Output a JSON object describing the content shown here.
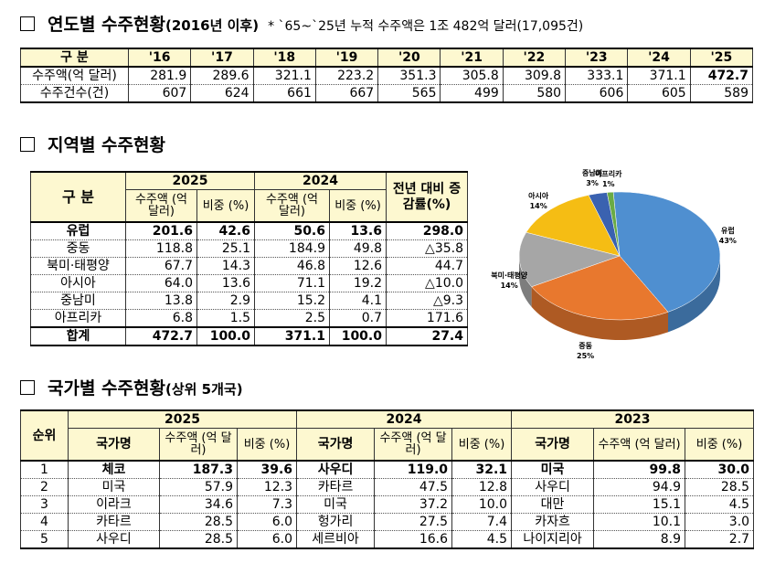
{
  "section1": {
    "title": "연도별 수주현황",
    "subtitle": "(2016년 이후)",
    "note": "* `65~`25년 누적 수주액은 1조 482억 달러(17,095건)",
    "header_label": "구  분",
    "years": [
      "'16",
      "'17",
      "'18",
      "'19",
      "'20",
      "'21",
      "'22",
      "'23",
      "'24",
      "'25"
    ],
    "rows": [
      {
        "label": "수주액(억 달러)",
        "values": [
          "281.9",
          "289.6",
          "321.1",
          "223.2",
          "351.3",
          "305.8",
          "309.8",
          "333.1",
          "371.1",
          "472.7"
        ]
      },
      {
        "label": "수주건수(건)",
        "values": [
          "607",
          "624",
          "661",
          "667",
          "565",
          "499",
          "580",
          "606",
          "605",
          "589"
        ]
      }
    ]
  },
  "section2": {
    "title": "지역별 수주현황",
    "header_label": "구  분",
    "year_a": "2025",
    "year_b": "2024",
    "change_header": "전년 대비 증감률(%)",
    "amount_header": "수주액 (억 달러)",
    "share_header": "비중 (%)",
    "rows": [
      {
        "region": "유럽",
        "a_amt": "201.6",
        "a_share": "42.6",
        "b_amt": "50.6",
        "b_share": "13.6",
        "change": "298.0",
        "bold": true
      },
      {
        "region": "중동",
        "a_amt": "118.8",
        "a_share": "25.1",
        "b_amt": "184.9",
        "b_share": "49.8",
        "change": "△35.8"
      },
      {
        "region": "북미·태평양",
        "a_amt": "67.7",
        "a_share": "14.3",
        "b_amt": "46.8",
        "b_share": "12.6",
        "change": "44.7"
      },
      {
        "region": "아시아",
        "a_amt": "64.0",
        "a_share": "13.6",
        "b_amt": "71.1",
        "b_share": "19.2",
        "change": "△10.0"
      },
      {
        "region": "중남미",
        "a_amt": "13.8",
        "a_share": "2.9",
        "b_amt": "15.2",
        "b_share": "4.1",
        "change": "△9.3"
      },
      {
        "region": "아프리카",
        "a_amt": "6.8",
        "a_share": "1.5",
        "b_amt": "2.5",
        "b_share": "0.7",
        "change": "171.6"
      },
      {
        "region": "합계",
        "a_amt": "472.7",
        "a_share": "100.0",
        "b_amt": "371.1",
        "b_share": "100.0",
        "change": "27.4",
        "bold": true
      }
    ]
  },
  "chart_data": {
    "type": "pie",
    "slices": [
      {
        "name": "유럽",
        "label": "유럽",
        "pct_label": "43%",
        "value": 43,
        "color": "#4f8fd0"
      },
      {
        "name": "중동",
        "label": "중동",
        "pct_label": "25%",
        "value": 25,
        "color": "#e8782e"
      },
      {
        "name": "북미·태평양",
        "label": "북미·태평양",
        "pct_label": "14%",
        "value": 14,
        "color": "#a6a6a6"
      },
      {
        "name": "아시아",
        "label": "아시아",
        "pct_label": "14%",
        "value": 14,
        "color": "#f5bd14"
      },
      {
        "name": "중남미",
        "label": "중남미",
        "pct_label": "3%",
        "value": 3,
        "color": "#3a62b0"
      },
      {
        "name": "아프리카",
        "label": "아프리카",
        "pct_label": "1%",
        "value": 1,
        "color": "#6aab45"
      }
    ]
  },
  "section3": {
    "title": "국가별 수주현황",
    "subtitle": "(상위 5개국)",
    "rank_header": "순위",
    "country_header": "국가명",
    "amount_header": "수주액 (억 달러)",
    "share_header": "비중 (%)",
    "years": [
      "2025",
      "2024",
      "2023"
    ],
    "rows": [
      {
        "rank": "1",
        "c25": "체코",
        "a25": "187.3",
        "s25": "39.6",
        "c24": "사우디",
        "a24": "119.0",
        "s24": "32.1",
        "c23": "미국",
        "a23": "99.8",
        "s23": "30.0",
        "bold": true
      },
      {
        "rank": "2",
        "c25": "미국",
        "a25": "57.9",
        "s25": "12.3",
        "c24": "카타르",
        "a24": "47.5",
        "s24": "12.8",
        "c23": "사우디",
        "a23": "94.9",
        "s23": "28.5"
      },
      {
        "rank": "3",
        "c25": "이라크",
        "a25": "34.6",
        "s25": "7.3",
        "c24": "미국",
        "a24": "37.2",
        "s24": "10.0",
        "c23": "대만",
        "a23": "15.1",
        "s23": "4.5"
      },
      {
        "rank": "4",
        "c25": "카타르",
        "a25": "28.5",
        "s25": "6.0",
        "c24": "헝가리",
        "a24": "27.5",
        "s24": "7.4",
        "c23": "카자흐",
        "a23": "10.1",
        "s23": "3.0"
      },
      {
        "rank": "5",
        "c25": "사우디",
        "a25": "28.5",
        "s25": "6.0",
        "c24": "세르비아",
        "a24": "16.6",
        "s24": "4.5",
        "c23": "나이지리아",
        "a23": "8.9",
        "s23": "2.7"
      }
    ]
  }
}
